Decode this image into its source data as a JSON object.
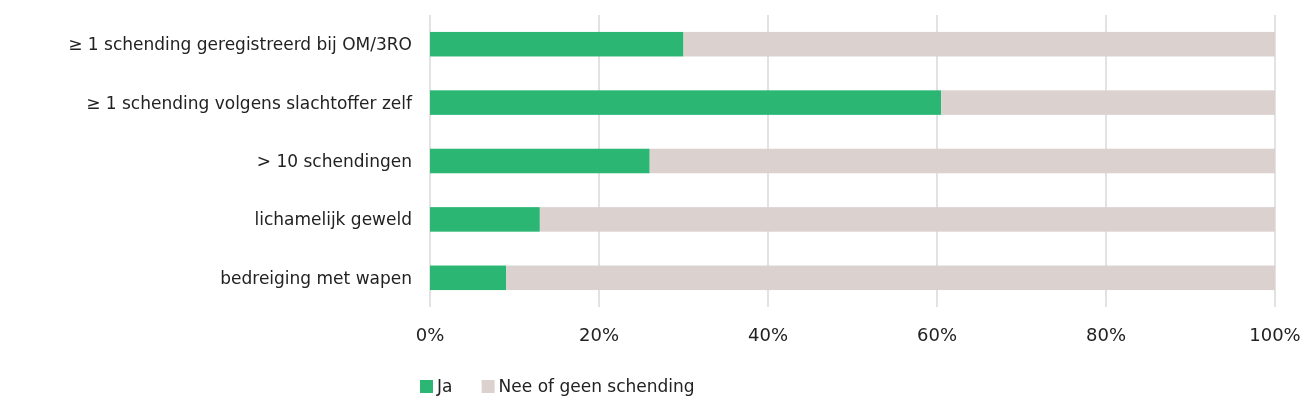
{
  "chart_data": {
    "type": "bar",
    "orientation": "horizontal",
    "stacked": true,
    "categories": [
      "≥ 1 schending geregistreerd bij OM/3RO",
      "≥ 1 schending volgens slachtoffer zelf",
      "> 10 schendingen",
      "lichamelijk geweld",
      "bedreiging met wapen"
    ],
    "series": [
      {
        "name": "Ja",
        "color": "#2bb673",
        "values": [
          30,
          60.5,
          26,
          13,
          9
        ]
      },
      {
        "name": "Nee of geen schending",
        "color": "#dbd1cf",
        "values": [
          70,
          39.5,
          74,
          87,
          91
        ]
      }
    ],
    "xlim": [
      0,
      100
    ],
    "xticks": [
      {
        "value": 0,
        "label": "0%"
      },
      {
        "value": 20,
        "label": "20%"
      },
      {
        "value": 40,
        "label": "40%"
      },
      {
        "value": 60,
        "label": "60%"
      },
      {
        "value": 80,
        "label": "80%"
      },
      {
        "value": 100,
        "label": "100%"
      }
    ],
    "grid": "x",
    "legend": "bottom"
  }
}
